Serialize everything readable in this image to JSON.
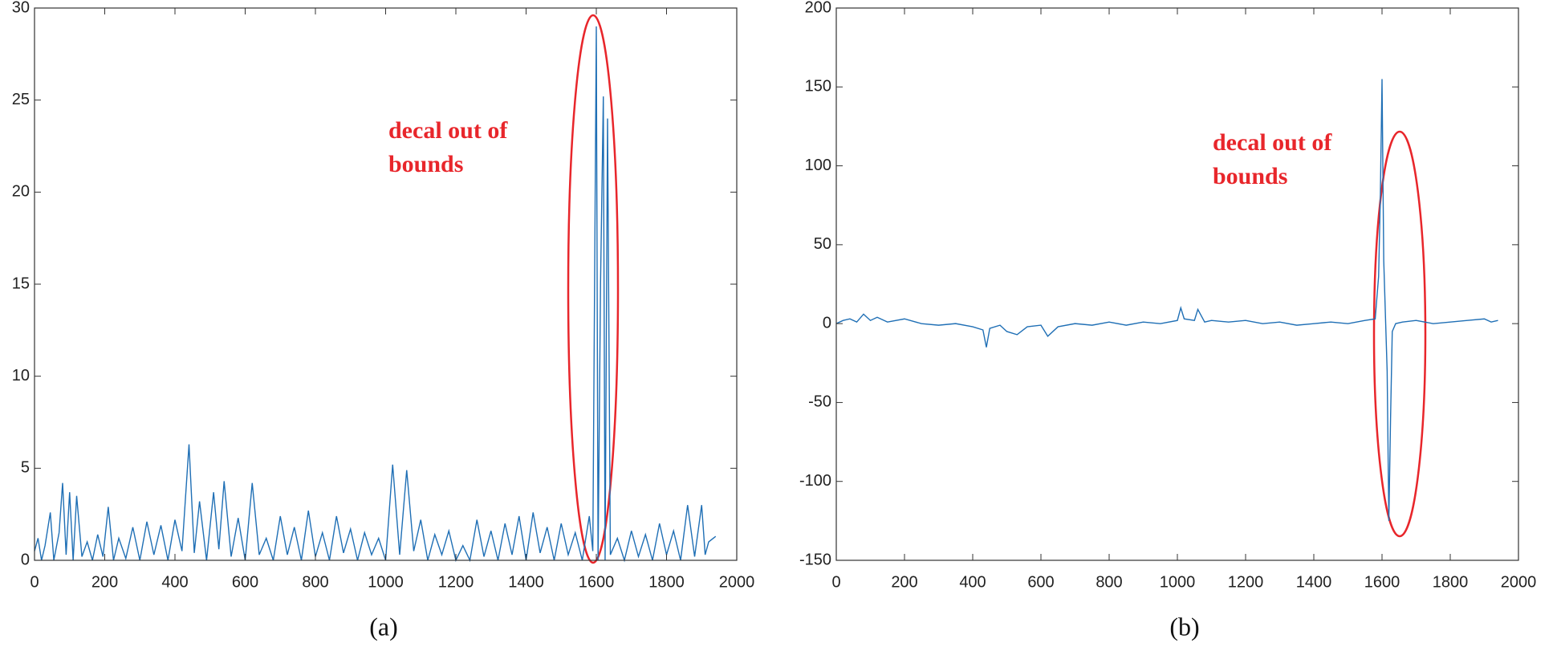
{
  "chart_data": [
    {
      "type": "line",
      "caption": "(a)",
      "annotation": [
        "decal out of",
        "bounds"
      ],
      "color": "#1f6fb5",
      "xlim": [
        0,
        2000
      ],
      "xticks": [
        0,
        200,
        400,
        600,
        800,
        1000,
        1200,
        1400,
        1600,
        1800,
        2000
      ],
      "ylim": [
        0,
        30
      ],
      "yticks": [
        0,
        5,
        10,
        15,
        20,
        25,
        30
      ],
      "x": [
        0,
        10,
        20,
        30,
        45,
        55,
        70,
        80,
        90,
        100,
        110,
        120,
        135,
        150,
        165,
        180,
        195,
        210,
        225,
        240,
        260,
        280,
        300,
        320,
        340,
        360,
        380,
        400,
        420,
        440,
        455,
        470,
        490,
        510,
        525,
        540,
        560,
        580,
        600,
        620,
        640,
        660,
        680,
        700,
        720,
        740,
        760,
        780,
        800,
        820,
        840,
        860,
        880,
        900,
        920,
        940,
        960,
        980,
        1000,
        1020,
        1040,
        1060,
        1080,
        1100,
        1120,
        1140,
        1160,
        1180,
        1200,
        1220,
        1240,
        1260,
        1280,
        1300,
        1320,
        1340,
        1360,
        1380,
        1400,
        1420,
        1440,
        1460,
        1480,
        1500,
        1520,
        1540,
        1560,
        1580,
        1590,
        1600,
        1605,
        1612,
        1620,
        1625,
        1632,
        1640,
        1660,
        1680,
        1700,
        1720,
        1740,
        1760,
        1780,
        1800,
        1820,
        1840,
        1860,
        1880,
        1900,
        1910,
        1920,
        1940
      ],
      "values": [
        0.5,
        1.2,
        0,
        0.8,
        2.6,
        0,
        1.5,
        4.2,
        0.3,
        3.7,
        0,
        3.5,
        0.2,
        1.0,
        0,
        1.4,
        0.2,
        2.9,
        0,
        1.2,
        0.1,
        1.8,
        0,
        2.1,
        0.3,
        1.9,
        0,
        2.2,
        0.5,
        6.3,
        0.4,
        3.2,
        0,
        3.7,
        0.6,
        4.3,
        0.2,
        2.3,
        0,
        4.2,
        0.3,
        1.2,
        0,
        2.4,
        0.3,
        1.8,
        0,
        2.7,
        0.2,
        1.5,
        0,
        2.4,
        0.4,
        1.7,
        0,
        1.5,
        0.3,
        1.2,
        0,
        5.2,
        0.3,
        4.9,
        0.5,
        2.2,
        0,
        1.4,
        0.3,
        1.6,
        0,
        0.8,
        0,
        2.2,
        0.2,
        1.6,
        0,
        2.0,
        0.3,
        2.4,
        0,
        2.6,
        0.4,
        1.8,
        0,
        2.0,
        0.3,
        1.5,
        0,
        2.4,
        0.5,
        29,
        0,
        15,
        25.2,
        0,
        24,
        0.3,
        1.2,
        0,
        1.6,
        0.2,
        1.4,
        0,
        2.0,
        0.3,
        1.6,
        0,
        3.0,
        0.2,
        3.0,
        0.3,
        1.0,
        1.3
      ]
    },
    {
      "type": "line",
      "caption": "(b)",
      "annotation": [
        "decal out of",
        "bounds"
      ],
      "color": "#1f6fb5",
      "xlim": [
        0,
        2000
      ],
      "xticks": [
        0,
        200,
        400,
        600,
        800,
        1000,
        1200,
        1400,
        1600,
        1800,
        2000
      ],
      "ylim": [
        -150,
        200
      ],
      "yticks": [
        -150,
        -100,
        -50,
        0,
        50,
        100,
        150,
        200
      ],
      "x": [
        0,
        20,
        40,
        60,
        80,
        100,
        120,
        150,
        200,
        250,
        300,
        350,
        400,
        430,
        440,
        450,
        480,
        500,
        530,
        560,
        600,
        620,
        650,
        700,
        750,
        800,
        850,
        900,
        950,
        1000,
        1010,
        1020,
        1050,
        1060,
        1080,
        1100,
        1150,
        1200,
        1250,
        1300,
        1350,
        1400,
        1450,
        1500,
        1550,
        1580,
        1590,
        1595,
        1600,
        1605,
        1610,
        1615,
        1620,
        1625,
        1630,
        1640,
        1660,
        1700,
        1750,
        1800,
        1850,
        1900,
        1920,
        1940
      ],
      "values": [
        0,
        2,
        3,
        1,
        6,
        2,
        4,
        1,
        3,
        0,
        -1,
        0,
        -2,
        -4,
        -15,
        -3,
        -1,
        -5,
        -7,
        -2,
        -1,
        -8,
        -2,
        0,
        -1,
        1,
        -1,
        1,
        0,
        2,
        10,
        3,
        2,
        9,
        1,
        2,
        1,
        2,
        0,
        1,
        -1,
        0,
        1,
        0,
        2,
        3,
        30,
        80,
        155,
        40,
        5,
        -30,
        -125,
        -60,
        -5,
        0,
        1,
        2,
        0,
        1,
        2,
        3,
        1,
        2
      ]
    }
  ]
}
